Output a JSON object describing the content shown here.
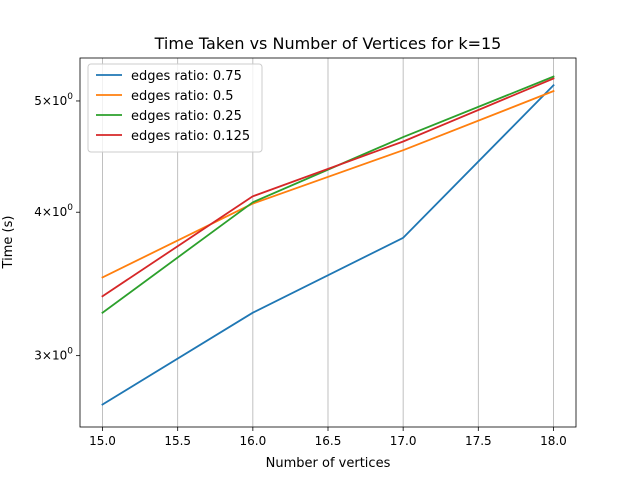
{
  "chart_data": {
    "type": "line",
    "title": "Time Taken vs Number of Vertices for k=15",
    "xlabel": "Number of vertices",
    "ylabel": "Time (s)",
    "x": [
      15.0,
      16.0,
      17.0,
      18.0
    ],
    "xlim": [
      14.85,
      18.15
    ],
    "ylim": [
      2.6,
      5.45
    ],
    "yscale": "log",
    "grid": "x-major",
    "legend": "top-left",
    "xticks": [
      "15.0",
      "15.5",
      "16.0",
      "16.5",
      "17.0",
      "17.5",
      "18.0"
    ],
    "yticks": [
      {
        "base": "3",
        "label_suffix": "10",
        "exp": "0",
        "value": 3
      },
      {
        "base": "4",
        "label_suffix": "10",
        "exp": "0",
        "value": 4
      },
      {
        "base": "5",
        "label_suffix": "10",
        "exp": "0",
        "value": 5
      }
    ],
    "series": [
      {
        "name": "edges ratio: 0.75",
        "color": "#1f77b4",
        "values": [
          2.72,
          3.27,
          3.8,
          5.16
        ]
      },
      {
        "name": "edges ratio: 0.5",
        "color": "#ff7f0e",
        "values": [
          3.51,
          4.07,
          4.53,
          5.1
        ]
      },
      {
        "name": "edges ratio: 0.25",
        "color": "#2ca02c",
        "values": [
          3.27,
          4.08,
          4.65,
          5.25
        ]
      },
      {
        "name": "edges ratio: 0.125",
        "color": "#d62728",
        "values": [
          3.38,
          4.13,
          4.61,
          5.23
        ]
      }
    ]
  }
}
